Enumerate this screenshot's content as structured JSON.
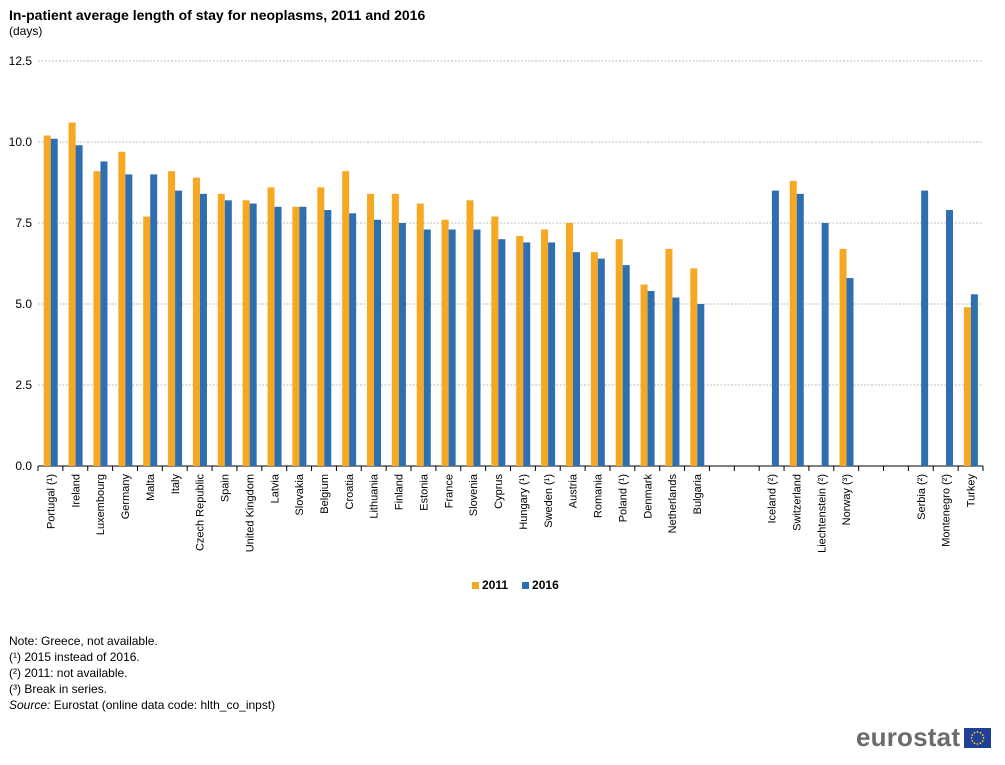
{
  "title": "In-patient average length of stay for neoplasms, 2011 and 2016",
  "subtitle": "(days)",
  "legend": [
    {
      "label": "2011",
      "color": "#F6A823"
    },
    {
      "label": "2016",
      "color": "#2D6FB1"
    }
  ],
  "notes": [
    "Note: Greece, not available.",
    "(¹) 2015 instead of 2016.",
    "(²) 2011: not available.",
    "(³) Break in series."
  ],
  "source": {
    "label": "Source:",
    "text": "Eurostat (online data code: hlth_co_inpst)"
  },
  "logo": {
    "text": "eurostat"
  },
  "chart_data": {
    "type": "bar",
    "title": "In-patient average length of stay for neoplasms, 2011 and 2016",
    "ylabel": "(days)",
    "ylim": [
      0,
      12.5
    ],
    "yticks": [
      "0.0",
      "2.5",
      "5.0",
      "7.5",
      "10.0",
      "12.5"
    ],
    "grid": true,
    "legend_position": "bottom",
    "groups": [
      {
        "categories": [
          "Portugal (¹)",
          "Ireland",
          "Luxembourg",
          "Germany",
          "Malta",
          "Italy",
          "Czech Republic",
          "Spain",
          "United Kingdom",
          "Latvia",
          "Slovakia",
          "Belgium",
          "Croatia",
          "Lithuania",
          "Finland",
          "Estonia",
          "France",
          "Slovenia",
          "Cyprus",
          "Hungary (¹)",
          "Sweden (¹)",
          "Austria",
          "Romania",
          "Poland (¹)",
          "Denmark",
          "Netherlands",
          "Bulgaria"
        ]
      },
      {
        "categories": [
          "Iceland (²)",
          "Switzerland",
          "Liechtenstein (²)",
          "Norway (³)"
        ]
      },
      {
        "categories": [
          "Serbia (²)",
          "Montenegro (²)",
          "Turkey"
        ]
      }
    ],
    "categories": [
      "Portugal (¹)",
      "Ireland",
      "Luxembourg",
      "Germany",
      "Malta",
      "Italy",
      "Czech Republic",
      "Spain",
      "United Kingdom",
      "Latvia",
      "Slovakia",
      "Belgium",
      "Croatia",
      "Lithuania",
      "Finland",
      "Estonia",
      "France",
      "Slovenia",
      "Cyprus",
      "Hungary (¹)",
      "Sweden (¹)",
      "Austria",
      "Romania",
      "Poland (¹)",
      "Denmark",
      "Netherlands",
      "Bulgaria",
      "Iceland (²)",
      "Switzerland",
      "Liechtenstein (²)",
      "Norway (³)",
      "Serbia (²)",
      "Montenegro (²)",
      "Turkey"
    ],
    "series": [
      {
        "name": "2011",
        "color": "#F6A823",
        "values": [
          10.2,
          10.6,
          9.1,
          9.7,
          7.7,
          9.1,
          8.9,
          8.4,
          8.2,
          8.6,
          8.0,
          8.6,
          9.1,
          8.4,
          8.4,
          8.1,
          7.6,
          8.2,
          7.7,
          7.1,
          7.3,
          7.5,
          6.6,
          7.0,
          5.6,
          6.7,
          6.1,
          null,
          8.8,
          null,
          6.7,
          null,
          null,
          4.9
        ]
      },
      {
        "name": "2016",
        "color": "#2D6FB1",
        "values": [
          10.1,
          9.9,
          9.4,
          9.0,
          9.0,
          8.5,
          8.4,
          8.2,
          8.1,
          8.0,
          8.0,
          7.9,
          7.8,
          7.6,
          7.5,
          7.3,
          7.3,
          7.3,
          7.0,
          6.9,
          6.9,
          6.6,
          6.4,
          6.2,
          5.4,
          5.2,
          5.0,
          8.5,
          8.4,
          7.5,
          5.8,
          8.5,
          7.9,
          5.3
        ]
      }
    ]
  }
}
